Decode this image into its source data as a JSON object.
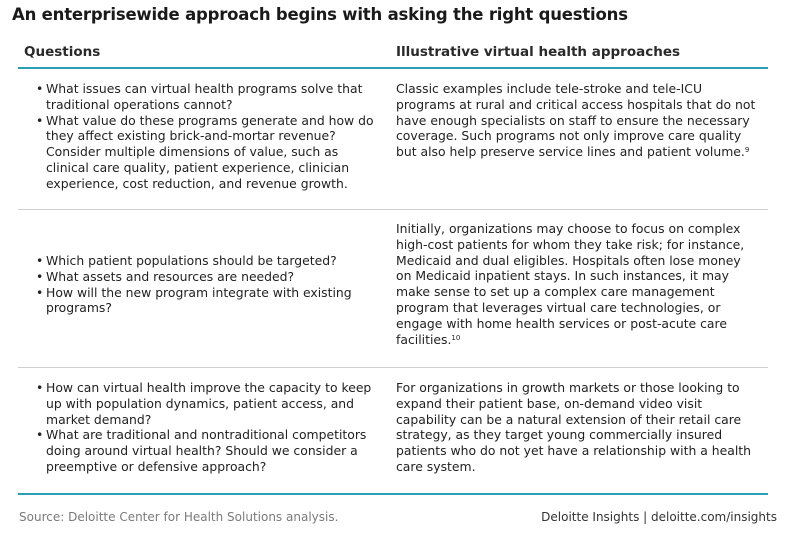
{
  "title": "An enterprisewide approach begins with asking the right questions",
  "table": {
    "headers": {
      "questions": "Questions",
      "approaches": "Illustrative virtual health approaches"
    },
    "rows": [
      {
        "questions": [
          "What issues can virtual health programs solve that traditional operations cannot?",
          "What value do these programs generate and how do they affect existing brick-and-mortar revenue? Consider multiple dimensions of value, such as clinical care quality, patient experience, clinician experience, cost reduction, and revenue growth."
        ],
        "approach": "Classic examples include tele-stroke and tele-ICU programs at rural and critical access hospitals that do not have enough specialists on staff to ensure the necessary coverage. Such programs not only improve care quality but also help preserve service lines and patient volume.",
        "note": "9"
      },
      {
        "questions": [
          "Which patient populations should be targeted?",
          "What assets and resources are needed?",
          "How will the new program integrate with existing programs?"
        ],
        "approach": "Initially, organizations may choose to focus on complex high-cost patients for whom they take risk; for instance, Medicaid and dual eligibles. Hospitals often lose money on Medicaid inpatient stays. In such instances, it may make sense to set up a complex care management program that leverages virtual care technologies, or engage with home health services or post-acute care facilities.",
        "note": "10"
      },
      {
        "questions": [
          "How can virtual health improve the capacity to keep up with population dynamics, patient access, and market demand?",
          "What are traditional and nontraditional competitors doing around virtual health? Should we consider a preemptive or defensive approach?"
        ],
        "approach": "For organizations in growth markets or those looking to expand their patient base, on-demand video visit capability can be a natural extension of their retail care strategy, as they target young commercially insured patients who do not yet have a relationship with a health care system.",
        "note": ""
      }
    ]
  },
  "footer": {
    "source": "Source: Deloitte Center for Health Solutions analysis.",
    "brand": "Deloitte Insights | deloitte.com/insights"
  },
  "colors": {
    "accent": "#2b9fb5",
    "divider": "#cfcfcf",
    "source_text": "#7a7a7a"
  }
}
